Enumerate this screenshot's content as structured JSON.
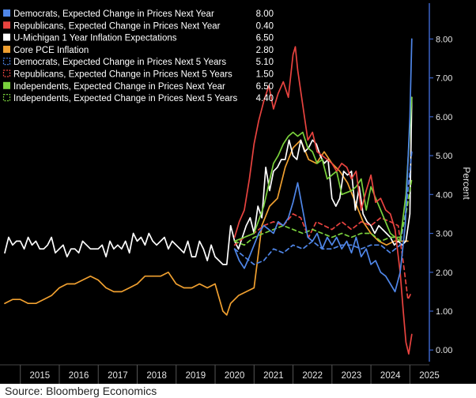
{
  "source": "Source: Bloomberg Economics",
  "colors": {
    "background": "#000000",
    "y_axis_line": "#3a62c6",
    "tick_text": "#e6e6e6"
  },
  "chart_data": {
    "type": "line",
    "xlabel": "",
    "ylabel": "Percent",
    "x_axis_labels": [
      "2015",
      "2016",
      "2017",
      "2018",
      "2019",
      "2020",
      "2021",
      "2022",
      "2023",
      "2024",
      "2025"
    ],
    "xlim": [
      2014.6,
      2025.5
    ],
    "ylim": [
      -0.3,
      8.8
    ],
    "y_ticks": [
      0,
      1,
      2,
      3,
      4,
      5,
      6,
      7,
      8
    ],
    "y_tick_labels": [
      "0.00",
      "1.00",
      "2.00",
      "3.00",
      "4.00",
      "5.00",
      "6.00",
      "7.00",
      "8.00"
    ],
    "y_axis_position": "right",
    "grid": false,
    "legend_position": "top-left",
    "series": [
      {
        "name": "Democrats, Expected Change in Prices Next Year",
        "value_label": "8.00",
        "color": "#4f86e8",
        "dash": "solid",
        "x": [
          2020.5,
          2020.62,
          2020.75,
          2020.88,
          2021.0,
          2021.12,
          2021.25,
          2021.38,
          2021.5,
          2021.62,
          2021.75,
          2021.88,
          2022.0,
          2022.12,
          2022.25,
          2022.38,
          2022.5,
          2022.62,
          2022.75,
          2022.88,
          2023.0,
          2023.12,
          2023.25,
          2023.38,
          2023.5,
          2023.62,
          2023.75,
          2023.88,
          2024.0,
          2024.12,
          2024.25,
          2024.38,
          2024.5,
          2024.62,
          2024.75,
          2024.88,
          2025.0,
          2025.05
        ],
        "y": [
          2.6,
          2.3,
          2.1,
          2.4,
          2.7,
          3.0,
          3.2,
          3.1,
          3.0,
          3.3,
          3.2,
          3.4,
          3.8,
          4.3,
          3.6,
          2.9,
          2.8,
          3.0,
          2.6,
          2.9,
          2.7,
          2.9,
          2.6,
          2.8,
          2.5,
          2.9,
          2.4,
          2.6,
          2.2,
          2.3,
          2.0,
          1.9,
          1.7,
          1.5,
          2.0,
          3.2,
          6.0,
          8.0
        ]
      },
      {
        "name": "Republicans, Expected Change in Prices Next Year",
        "value_label": "0.40",
        "color": "#e8433f",
        "dash": "solid",
        "x": [
          2020.5,
          2020.62,
          2020.75,
          2020.88,
          2021.0,
          2021.12,
          2021.25,
          2021.38,
          2021.5,
          2021.62,
          2021.75,
          2021.88,
          2022.0,
          2022.06,
          2022.12,
          2022.25,
          2022.38,
          2022.5,
          2022.62,
          2022.75,
          2022.88,
          2023.0,
          2023.12,
          2023.25,
          2023.38,
          2023.5,
          2023.62,
          2023.75,
          2023.88,
          2024.0,
          2024.12,
          2024.25,
          2024.38,
          2024.5,
          2024.62,
          2024.75,
          2024.83,
          2024.9,
          2024.97,
          2025.05
        ],
        "y": [
          2.9,
          3.3,
          3.6,
          4.4,
          5.3,
          5.9,
          6.4,
          6.8,
          6.2,
          6.6,
          6.9,
          6.5,
          7.6,
          7.8,
          7.2,
          6.3,
          5.4,
          5.6,
          5.1,
          5.0,
          4.9,
          4.8,
          4.6,
          4.8,
          4.7,
          4.4,
          4.6,
          3.6,
          4.1,
          4.5,
          3.8,
          3.9,
          3.6,
          3.5,
          3.1,
          2.0,
          1.0,
          0.2,
          -0.1,
          0.4
        ]
      },
      {
        "name": "U-Michigan 1 Year Inflation Expectations",
        "value_label": "6.50",
        "color": "#ffffff",
        "dash": "solid",
        "x": [
          2014.6,
          2014.7,
          2014.8,
          2014.9,
          2015.0,
          2015.1,
          2015.2,
          2015.3,
          2015.4,
          2015.5,
          2015.6,
          2015.7,
          2015.8,
          2015.9,
          2016.0,
          2016.1,
          2016.2,
          2016.3,
          2016.4,
          2016.5,
          2016.6,
          2016.7,
          2016.8,
          2016.9,
          2017.0,
          2017.1,
          2017.2,
          2017.3,
          2017.4,
          2017.5,
          2017.6,
          2017.7,
          2017.8,
          2017.9,
          2018.0,
          2018.1,
          2018.2,
          2018.3,
          2018.4,
          2018.5,
          2018.6,
          2018.7,
          2018.8,
          2018.9,
          2019.0,
          2019.1,
          2019.2,
          2019.3,
          2019.4,
          2019.5,
          2019.6,
          2019.7,
          2019.8,
          2019.9,
          2020.0,
          2020.1,
          2020.2,
          2020.3,
          2020.4,
          2020.5,
          2020.6,
          2020.7,
          2020.8,
          2020.9,
          2021.0,
          2021.1,
          2021.2,
          2021.3,
          2021.4,
          2021.5,
          2021.6,
          2021.7,
          2021.8,
          2021.9,
          2022.0,
          2022.1,
          2022.2,
          2022.3,
          2022.4,
          2022.5,
          2022.6,
          2022.7,
          2022.8,
          2022.9,
          2023.0,
          2023.1,
          2023.2,
          2023.3,
          2023.4,
          2023.5,
          2023.6,
          2023.7,
          2023.8,
          2023.9,
          2024.0,
          2024.1,
          2024.2,
          2024.3,
          2024.4,
          2024.5,
          2024.6,
          2024.7,
          2024.8,
          2024.9,
          2025.0,
          2025.05
        ],
        "y": [
          2.5,
          2.9,
          2.7,
          2.8,
          2.8,
          2.6,
          2.9,
          2.7,
          2.8,
          2.6,
          2.6,
          2.7,
          2.9,
          2.5,
          2.6,
          2.7,
          2.4,
          2.6,
          2.6,
          2.5,
          2.8,
          2.7,
          2.6,
          2.6,
          2.6,
          2.7,
          2.4,
          2.8,
          2.6,
          2.7,
          2.6,
          2.8,
          2.5,
          3.0,
          2.8,
          2.9,
          2.7,
          3.0,
          2.8,
          2.7,
          2.8,
          2.9,
          2.6,
          2.8,
          2.7,
          2.6,
          2.5,
          2.8,
          2.4,
          2.4,
          2.8,
          2.6,
          2.3,
          2.7,
          2.4,
          2.3,
          2.2,
          2.2,
          3.2,
          2.8,
          2.6,
          2.9,
          3.2,
          3.4,
          3.0,
          3.7,
          3.4,
          4.7,
          4.1,
          4.6,
          4.7,
          4.9,
          4.9,
          5.4,
          5.0,
          4.9,
          5.4,
          5.1,
          5.2,
          5.4,
          5.3,
          5.0,
          4.8,
          4.9,
          3.9,
          3.7,
          3.9,
          4.6,
          4.5,
          4.6,
          3.6,
          4.2,
          3.5,
          3.3,
          3.2,
          3.0,
          3.2,
          3.1,
          3.0,
          2.9,
          2.7,
          2.8,
          2.7,
          2.8,
          3.5,
          6.5
        ]
      },
      {
        "name": "Core PCE Inflation",
        "value_label": "2.80",
        "color": "#f0a030",
        "dash": "solid",
        "x": [
          2014.6,
          2014.8,
          2015.0,
          2015.2,
          2015.4,
          2015.6,
          2015.8,
          2016.0,
          2016.2,
          2016.4,
          2016.6,
          2016.8,
          2017.0,
          2017.2,
          2017.4,
          2017.6,
          2017.8,
          2018.0,
          2018.2,
          2018.4,
          2018.6,
          2018.8,
          2019.0,
          2019.2,
          2019.4,
          2019.6,
          2019.8,
          2020.0,
          2020.2,
          2020.3,
          2020.4,
          2020.6,
          2020.8,
          2021.0,
          2021.2,
          2021.4,
          2021.6,
          2021.8,
          2022.0,
          2022.2,
          2022.4,
          2022.6,
          2022.8,
          2023.0,
          2023.2,
          2023.4,
          2023.6,
          2023.8,
          2024.0,
          2024.2,
          2024.4,
          2024.6,
          2024.8,
          2024.95
        ],
        "y": [
          1.2,
          1.3,
          1.3,
          1.2,
          1.2,
          1.3,
          1.4,
          1.6,
          1.7,
          1.7,
          1.8,
          1.9,
          1.8,
          1.6,
          1.5,
          1.5,
          1.6,
          1.7,
          1.9,
          1.9,
          1.9,
          2.0,
          1.7,
          1.6,
          1.6,
          1.7,
          1.6,
          1.7,
          1.0,
          0.9,
          1.2,
          1.4,
          1.5,
          1.6,
          3.2,
          3.7,
          3.9,
          4.7,
          5.2,
          5.4,
          4.9,
          4.8,
          5.1,
          4.8,
          4.6,
          4.3,
          3.8,
          3.3,
          3.0,
          2.8,
          2.7,
          2.8,
          2.8,
          2.8
        ]
      },
      {
        "name": "Democrats, Expected Change in Prices Next 5 Years",
        "value_label": "5.10",
        "color": "#4f86e8",
        "dash": "dashed",
        "x": [
          2020.5,
          2020.75,
          2021.0,
          2021.25,
          2021.5,
          2021.75,
          2022.0,
          2022.25,
          2022.5,
          2022.75,
          2023.0,
          2023.25,
          2023.5,
          2023.75,
          2024.0,
          2024.25,
          2024.5,
          2024.75,
          2024.9,
          2025.05
        ],
        "y": [
          2.6,
          2.4,
          2.2,
          2.3,
          2.6,
          2.5,
          2.7,
          2.6,
          2.8,
          2.6,
          2.6,
          2.7,
          2.7,
          2.6,
          2.7,
          2.7,
          2.5,
          2.7,
          3.6,
          5.1
        ]
      },
      {
        "name": "Republicans, Expected Change in Prices Next 5 Years",
        "value_label": "1.50",
        "color": "#e8433f",
        "dash": "dashed",
        "x": [
          2020.5,
          2020.75,
          2021.0,
          2021.25,
          2021.5,
          2021.75,
          2022.0,
          2022.2,
          2022.4,
          2022.6,
          2022.8,
          2023.0,
          2023.25,
          2023.5,
          2023.75,
          2024.0,
          2024.25,
          2024.5,
          2024.7,
          2024.85,
          2024.95,
          2025.05
        ],
        "y": [
          2.7,
          2.9,
          3.0,
          3.2,
          3.3,
          3.2,
          3.5,
          3.4,
          2.9,
          3.3,
          3.2,
          3.1,
          3.3,
          3.1,
          3.3,
          3.2,
          3.4,
          3.3,
          3.2,
          2.1,
          1.3,
          1.5
        ]
      },
      {
        "name": "Independents, Expected Change in Prices Next Year",
        "value_label": "6.50",
        "color": "#7ad13c",
        "dash": "solid",
        "x": [
          2020.5,
          2020.75,
          2021.0,
          2021.25,
          2021.5,
          2021.62,
          2021.75,
          2021.88,
          2022.0,
          2022.12,
          2022.25,
          2022.38,
          2022.5,
          2022.62,
          2022.75,
          2022.88,
          2023.0,
          2023.12,
          2023.25,
          2023.5,
          2023.62,
          2023.75,
          2023.88,
          2024.0,
          2024.25,
          2024.5,
          2024.75,
          2024.9,
          2025.05
        ],
        "y": [
          2.8,
          2.9,
          3.0,
          3.7,
          4.8,
          5.0,
          5.3,
          5.5,
          5.6,
          5.5,
          5.6,
          5.2,
          5.1,
          4.8,
          4.9,
          4.4,
          4.5,
          4.6,
          4.0,
          4.1,
          4.2,
          4.4,
          3.6,
          4.2,
          3.6,
          3.0,
          2.8,
          4.0,
          6.5
        ]
      },
      {
        "name": "Independents, Expected Change in Prices Next 5 Years",
        "value_label": "4.40",
        "color": "#7ad13c",
        "dash": "dashed",
        "x": [
          2020.5,
          2020.75,
          2021.0,
          2021.25,
          2021.5,
          2021.75,
          2022.0,
          2022.25,
          2022.5,
          2022.75,
          2023.0,
          2023.25,
          2023.5,
          2023.75,
          2024.0,
          2024.25,
          2024.5,
          2024.75,
          2024.9,
          2025.05
        ],
        "y": [
          2.8,
          2.7,
          2.9,
          3.0,
          3.1,
          3.2,
          3.1,
          3.0,
          3.1,
          3.0,
          2.9,
          3.0,
          2.9,
          3.0,
          3.0,
          2.8,
          2.9,
          2.9,
          3.5,
          4.4
        ]
      }
    ]
  }
}
